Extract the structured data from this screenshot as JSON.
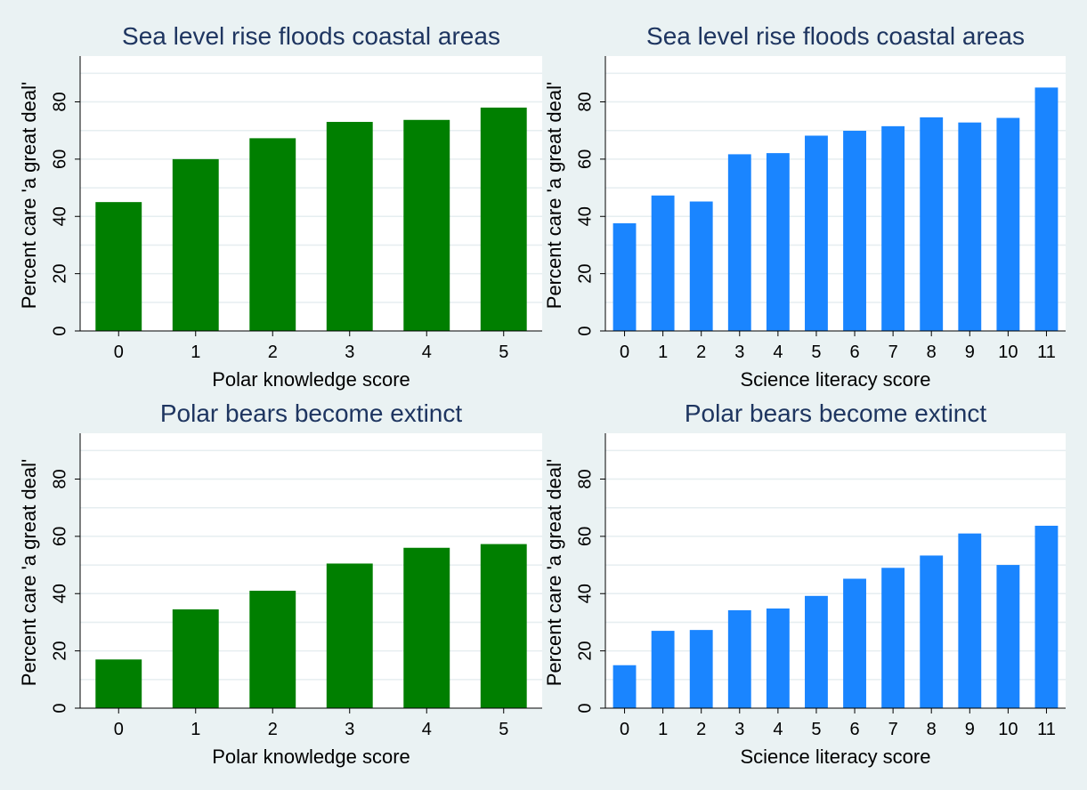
{
  "chart_data": [
    {
      "type": "bar",
      "title": "Sea level rise floods coastal areas",
      "xlabel": "Polar knowledge score",
      "ylabel": "Percent care 'a great deal'",
      "categories": [
        "0",
        "1",
        "2",
        "3",
        "4",
        "5"
      ],
      "values": [
        45,
        60,
        67.3,
        73,
        73.7,
        78
      ],
      "ylim": [
        0,
        96
      ],
      "yticks": [
        "0",
        "20",
        "40",
        "60",
        "80"
      ],
      "color": "#007f00",
      "grid": true
    },
    {
      "type": "bar",
      "title": "Sea level rise floods coastal areas",
      "xlabel": "Science literacy score",
      "ylabel": "Percent care 'a great deal'",
      "categories": [
        "0",
        "1",
        "2",
        "3",
        "4",
        "5",
        "6",
        "7",
        "8",
        "9",
        "10",
        "11"
      ],
      "values": [
        37.6,
        47.3,
        45.2,
        61.7,
        62.1,
        68.2,
        69.9,
        71.5,
        74.6,
        72.8,
        74.4,
        85
      ],
      "ylim": [
        0,
        96
      ],
      "yticks": [
        "0",
        "20",
        "40",
        "60",
        "80"
      ],
      "color": "#1a85ff",
      "grid": true
    },
    {
      "type": "bar",
      "title": "Polar bears become extinct",
      "xlabel": "Polar knowledge score",
      "ylabel": "Percent care 'a great deal'",
      "categories": [
        "0",
        "1",
        "2",
        "3",
        "4",
        "5"
      ],
      "values": [
        17,
        34.5,
        41,
        50.5,
        56,
        57.3
      ],
      "ylim": [
        0,
        96
      ],
      "yticks": [
        "0",
        "20",
        "40",
        "60",
        "80"
      ],
      "color": "#007f00",
      "grid": true
    },
    {
      "type": "bar",
      "title": "Polar bears become extinct",
      "xlabel": "Science literacy score",
      "ylabel": "Percent care 'a great deal'",
      "categories": [
        "0",
        "1",
        "2",
        "3",
        "4",
        "5",
        "6",
        "7",
        "8",
        "9",
        "10",
        "11"
      ],
      "values": [
        15,
        27,
        27.3,
        34.2,
        34.8,
        39.2,
        45.2,
        49,
        53.3,
        61,
        50,
        63.7
      ],
      "ylim": [
        0,
        96
      ],
      "yticks": [
        "0",
        "20",
        "40",
        "60",
        "80"
      ],
      "color": "#1a85ff",
      "grid": true
    }
  ]
}
